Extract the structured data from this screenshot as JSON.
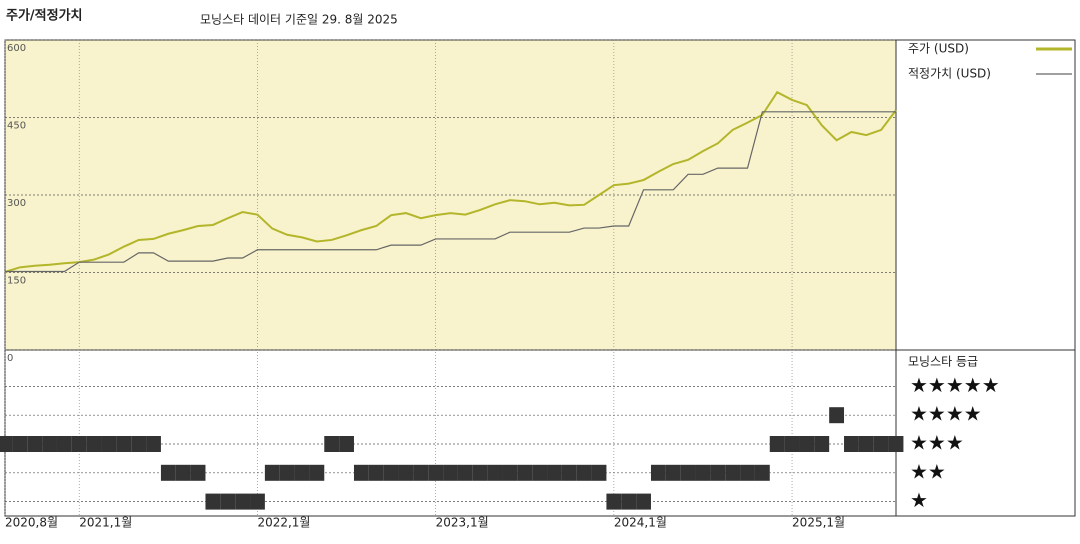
{
  "chart_data": [
    {
      "type": "line",
      "title": "주가/적정가치",
      "subtitle": "모닝스타 데이터 기준일 29. 8월 2025",
      "x": [
        "2020-08",
        "2020-09",
        "2020-10",
        "2020-11",
        "2020-12",
        "2021-01",
        "2021-02",
        "2021-03",
        "2021-04",
        "2021-05",
        "2021-06",
        "2021-07",
        "2021-08",
        "2021-09",
        "2021-10",
        "2021-11",
        "2021-12",
        "2022-01",
        "2022-02",
        "2022-03",
        "2022-04",
        "2022-05",
        "2022-06",
        "2022-07",
        "2022-08",
        "2022-09",
        "2022-10",
        "2022-11",
        "2022-12",
        "2023-01",
        "2023-02",
        "2023-03",
        "2023-04",
        "2023-05",
        "2023-06",
        "2023-07",
        "2023-08",
        "2023-09",
        "2023-10",
        "2023-11",
        "2023-12",
        "2024-01",
        "2024-02",
        "2024-03",
        "2024-04",
        "2024-05",
        "2024-06",
        "2024-07",
        "2024-08",
        "2024-09",
        "2024-10",
        "2024-11",
        "2024-12",
        "2025-01",
        "2025-02",
        "2025-03",
        "2025-04",
        "2025-05",
        "2025-06",
        "2025-07",
        "2025-08"
      ],
      "series": [
        {
          "name": "주가 (USD)",
          "color": "#b3b52a",
          "values": [
            151,
            160,
            163,
            165,
            168,
            170,
            175,
            185,
            200,
            213,
            215,
            225,
            232,
            240,
            242,
            255,
            267,
            262,
            235,
            223,
            218,
            210,
            213,
            222,
            232,
            240,
            261,
            265,
            255,
            261,
            265,
            262,
            271,
            282,
            290,
            288,
            282,
            285,
            280,
            281,
            300,
            319,
            322,
            329,
            345,
            360,
            368,
            385,
            400,
            426,
            440,
            455,
            499,
            484,
            474,
            435,
            406,
            422,
            416,
            426,
            464
          ]
        },
        {
          "name": "적정가치 (USD)",
          "color": "#666666",
          "values": [
            152,
            152,
            152,
            152,
            152,
            170,
            170,
            170,
            170,
            188,
            188,
            172,
            172,
            172,
            172,
            178,
            178,
            194,
            194,
            194,
            194,
            194,
            194,
            194,
            194,
            194,
            203,
            203,
            203,
            215,
            215,
            215,
            215,
            215,
            228,
            228,
            228,
            228,
            228,
            236,
            236,
            240,
            240,
            310,
            310,
            310,
            340,
            340,
            352,
            352,
            352,
            461,
            461,
            461,
            461,
            461,
            461,
            461,
            461,
            461,
            461
          ]
        }
      ],
      "ylim": [
        0,
        600
      ],
      "yticks": [
        0,
        150,
        300,
        450,
        600
      ],
      "xticks": [
        {
          "value": "2020-08",
          "label": "2020,8월"
        },
        {
          "value": "2021-01",
          "label": "2021,1월"
        },
        {
          "value": "2022-01",
          "label": "2022,1월"
        },
        {
          "value": "2023-01",
          "label": "2023,1월"
        },
        {
          "value": "2024-01",
          "label": "2024,1월"
        },
        {
          "value": "2025-01",
          "label": "2025,1월"
        }
      ],
      "grid": true,
      "background": "#f8f3cc"
    },
    {
      "type": "rating",
      "title": "모닝스타 등급",
      "levels": [
        "★",
        "★★",
        "★★★",
        "★★★★",
        "★★★★★"
      ],
      "x": [
        "2020-08",
        "2020-09",
        "2020-10",
        "2020-11",
        "2020-12",
        "2021-01",
        "2021-02",
        "2021-03",
        "2021-04",
        "2021-05",
        "2021-06",
        "2021-07",
        "2021-08",
        "2021-09",
        "2021-10",
        "2021-11",
        "2021-12",
        "2022-01",
        "2022-02",
        "2022-03",
        "2022-04",
        "2022-05",
        "2022-06",
        "2022-07",
        "2022-08",
        "2022-09",
        "2022-10",
        "2022-11",
        "2022-12",
        "2023-01",
        "2023-02",
        "2023-03",
        "2023-04",
        "2023-05",
        "2023-06",
        "2023-07",
        "2023-08",
        "2023-09",
        "2023-10",
        "2023-11",
        "2023-12",
        "2024-01",
        "2024-02",
        "2024-03",
        "2024-04",
        "2024-05",
        "2024-06",
        "2024-07",
        "2024-08",
        "2024-09",
        "2024-10",
        "2024-11",
        "2024-12",
        "2025-01",
        "2025-02",
        "2025-03",
        "2025-04",
        "2025-05",
        "2025-06",
        "2025-07",
        "2025-08"
      ],
      "values": [
        3,
        3,
        3,
        3,
        3,
        3,
        3,
        3,
        3,
        3,
        3,
        2,
        2,
        2,
        1,
        1,
        1,
        1,
        2,
        2,
        2,
        2,
        3,
        3,
        2,
        2,
        2,
        2,
        2,
        2,
        2,
        2,
        2,
        2,
        2,
        2,
        2,
        2,
        2,
        2,
        2,
        1,
        1,
        1,
        2,
        2,
        2,
        2,
        2,
        2,
        2,
        2,
        3,
        3,
        3,
        3,
        4,
        3,
        3,
        3,
        3
      ],
      "color": "#333333"
    }
  ]
}
